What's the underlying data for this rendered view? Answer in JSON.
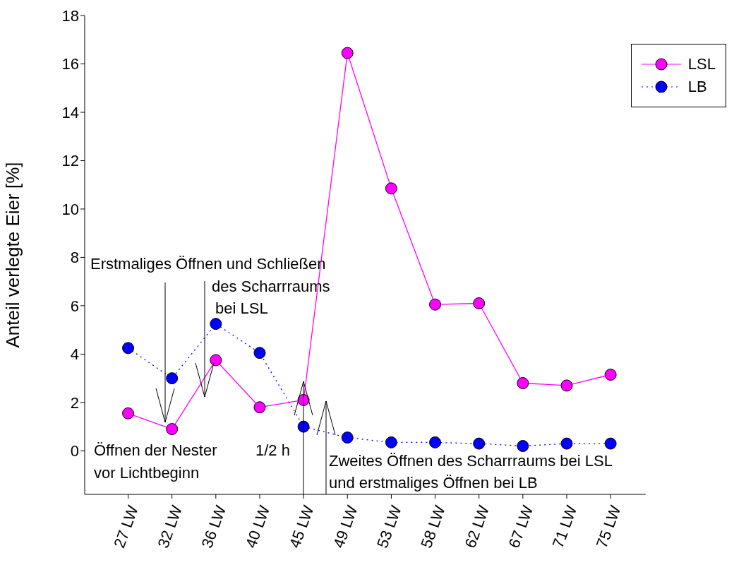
{
  "chart_data": {
    "type": "line",
    "ylabel": "Anteil verlegte Eier [%]",
    "categories": [
      "27 LW",
      "32 LW",
      "36 LW",
      "40 LW",
      "45 LW",
      "49 LW",
      "53 LW",
      "58 LW",
      "62 LW",
      "67 LW",
      "71 LW",
      "75 LW"
    ],
    "series": [
      {
        "name": "LSL",
        "color": "#ff00ff",
        "line_style": "solid",
        "values": [
          1.55,
          0.9,
          3.75,
          1.8,
          2.1,
          16.45,
          10.85,
          6.05,
          6.1,
          2.8,
          2.7,
          3.15
        ]
      },
      {
        "name": "LB",
        "color": "#0000ff",
        "line_style": "dotted",
        "values": [
          4.25,
          3.0,
          5.25,
          4.05,
          1.0,
          0.55,
          0.35,
          0.35,
          0.3,
          0.2,
          0.3,
          0.3
        ]
      }
    ],
    "ylim": [
      -1.8,
      18
    ],
    "yticks": [
      0,
      2,
      4,
      6,
      8,
      10,
      12,
      14,
      16,
      18
    ],
    "grid": false,
    "legend": "top right",
    "marker": "circle",
    "annotations": [
      "Erstmaliges Öffnen und Schließen",
      "des Scharrraums",
      "bei LSL",
      "Öffnen der Nester",
      "vor Lichtbeginn",
      "1/2 h",
      "Zweites Öffnen des Scharrraums bei LSL",
      "und erstmaliges Öffnen bei LB"
    ]
  }
}
